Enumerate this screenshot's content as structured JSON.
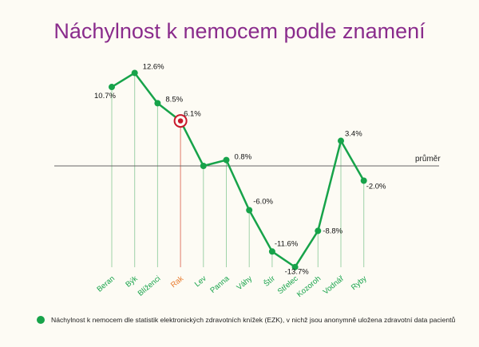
{
  "chart_data": {
    "type": "line",
    "title": "Náchylnost k nemocem podle znamení",
    "baseline_label": "průměr",
    "baseline_value": 0,
    "categories": [
      "Beran",
      "Býk",
      "Blíženci",
      "Rak",
      "Lev",
      "Panna",
      "Váhy",
      "Štír",
      "Střelec",
      "Kozoroh",
      "Vodnář",
      "Ryby"
    ],
    "values": [
      10.7,
      12.6,
      8.5,
      6.1,
      0,
      0.8,
      -6.0,
      -11.6,
      -13.7,
      -8.8,
      3.4,
      -2.0
    ],
    "value_labels": [
      "10.7%",
      "12.6%",
      "8.5%",
      "6.1%",
      "",
      "0.8%",
      "-6.0%",
      "-11.6%",
      "-13.7%",
      "-8.8%",
      "3.4%",
      "-2.0%"
    ],
    "highlight_index": 3,
    "colors": {
      "series": "#17a34a",
      "highlight": "#c9182b",
      "highlight_label": "#e8792a",
      "axis": "#666666",
      "title": "#8a2c8c"
    },
    "legend": "Náchylnost k nemocem dle statistik elektronických zdravotních knížek (EZK), v nichž jsou anonymně uložena zdravotní data pacientů"
  }
}
